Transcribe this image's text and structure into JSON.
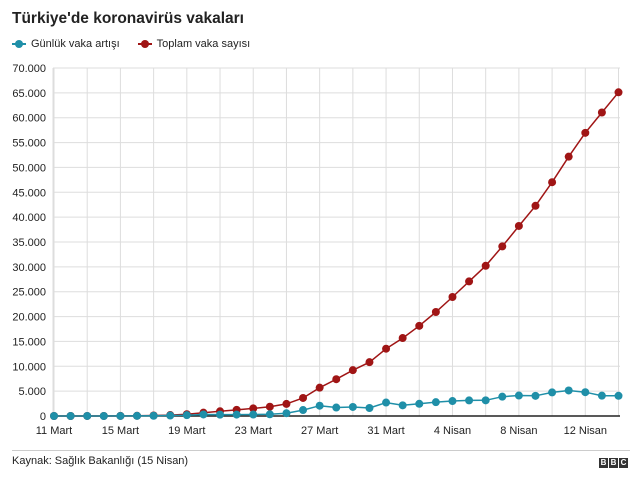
{
  "title": "Türkiye'de koronavirüs vakaları",
  "source": "Kaynak: Sağlık Bakanlığı (15 Nisan)",
  "logo": [
    "B",
    "B",
    "C"
  ],
  "colors": {
    "daily": "#1f8fa8",
    "total": "#a01515",
    "grid": "#dddddd",
    "axis": "#222222"
  },
  "chart_data": {
    "type": "line",
    "title": "Türkiye'de koronavirüs vakaları",
    "x_tick_labels": [
      "11 Mart",
      "15 Mart",
      "19 Mart",
      "23 Mart",
      "27 Mart",
      "31 Mart",
      "4 Nisan",
      "8 Nisan",
      "12 Nisan"
    ],
    "x": [
      "11 Mart",
      "12 Mart",
      "13 Mart",
      "14 Mart",
      "15 Mart",
      "16 Mart",
      "17 Mart",
      "18 Mart",
      "19 Mart",
      "20 Mart",
      "21 Mart",
      "22 Mart",
      "23 Mart",
      "24 Mart",
      "25 Mart",
      "26 Mart",
      "27 Mart",
      "28 Mart",
      "29 Mart",
      "30 Mart",
      "31 Mart",
      "1 Nisan",
      "2 Nisan",
      "3 Nisan",
      "4 Nisan",
      "5 Nisan",
      "6 Nisan",
      "7 Nisan",
      "8 Nisan",
      "9 Nisan",
      "10 Nisan",
      "11 Nisan",
      "12 Nisan",
      "13 Nisan",
      "14 Nisan"
    ],
    "ylim": [
      0,
      70000
    ],
    "y_tick_labels": [
      "0",
      "5.000",
      "10.000",
      "15.000",
      "20.000",
      "25.000",
      "30.000",
      "35.000",
      "40.000",
      "45.000",
      "50.000",
      "55.000",
      "60.000",
      "65.000",
      "70.000"
    ],
    "grid": true,
    "legend_position": "top-left",
    "series": [
      {
        "name": "Günlük vaka artışı",
        "values": [
          1,
          0,
          4,
          1,
          12,
          29,
          51,
          93,
          168,
          311,
          277,
          289,
          293,
          343,
          561,
          1196,
          2069,
          1704,
          1815,
          1610,
          2704,
          2148,
          2456,
          2786,
          3013,
          3135,
          3148,
          3892,
          4117,
          4056,
          4747,
          5138,
          4789,
          4093,
          4062
        ]
      },
      {
        "name": "Toplam vaka sayısı",
        "values": [
          1,
          1,
          5,
          6,
          18,
          47,
          98,
          191,
          359,
          670,
          947,
          1236,
          1529,
          1872,
          2433,
          3629,
          5698,
          7402,
          9217,
          10827,
          13531,
          15679,
          18135,
          20921,
          23934,
          27069,
          30217,
          34109,
          38226,
          42282,
          47029,
          52167,
          56956,
          61049,
          65111
        ]
      }
    ]
  }
}
